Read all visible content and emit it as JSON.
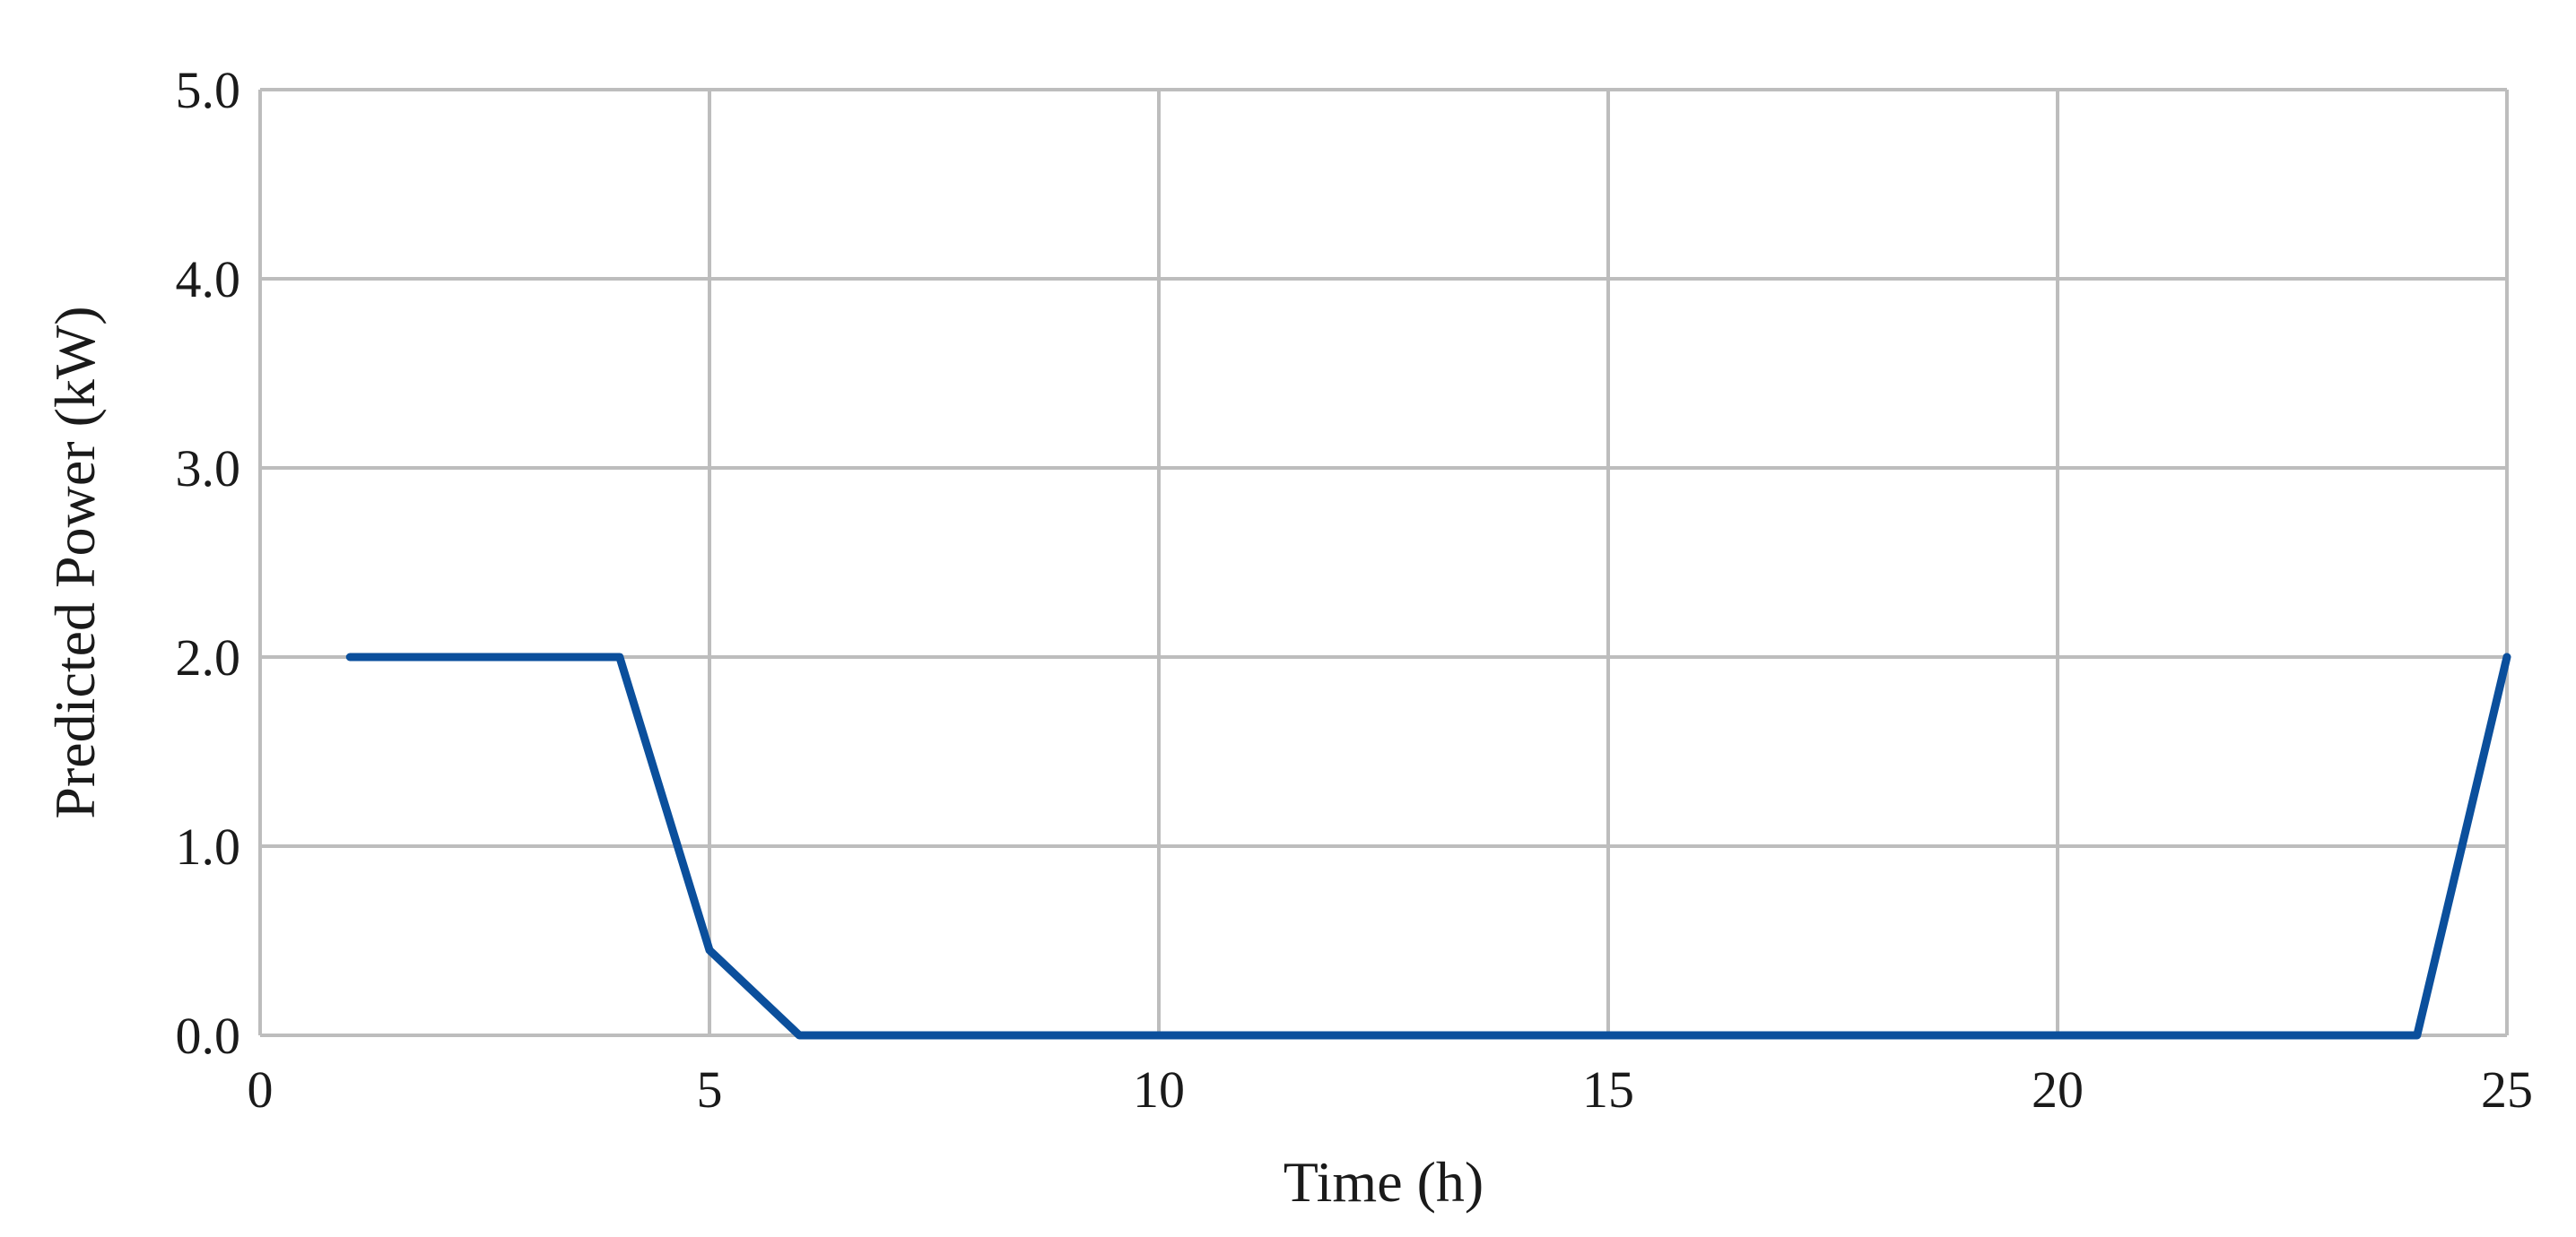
{
  "chart_data": {
    "type": "line",
    "title": "",
    "xlabel": "Time (h)",
    "ylabel": "Predicted Power (kW)",
    "xlim": [
      0,
      25
    ],
    "ylim": [
      0,
      5
    ],
    "x_ticks": [
      "0",
      "5",
      "10",
      "15",
      "20",
      "25"
    ],
    "y_ticks": [
      "0.0",
      "1.0",
      "2.0",
      "3.0",
      "4.0",
      "5.0"
    ],
    "grid": true,
    "legend": "none",
    "series": [
      {
        "color": "#0b4f9c",
        "x": [
          1,
          4,
          5,
          6,
          7,
          8,
          9,
          10,
          11,
          12,
          13,
          14,
          15,
          16,
          17,
          18,
          19,
          20,
          21,
          22,
          23,
          24,
          25
        ],
        "y": [
          2.0,
          2.0,
          0.45,
          0.0,
          0.0,
          0.0,
          0.0,
          0.0,
          0.0,
          0.0,
          0.0,
          0.0,
          0.0,
          0.0,
          0.0,
          0.0,
          0.0,
          0.0,
          0.0,
          0.0,
          0.0,
          0.0,
          2.0
        ]
      }
    ]
  }
}
